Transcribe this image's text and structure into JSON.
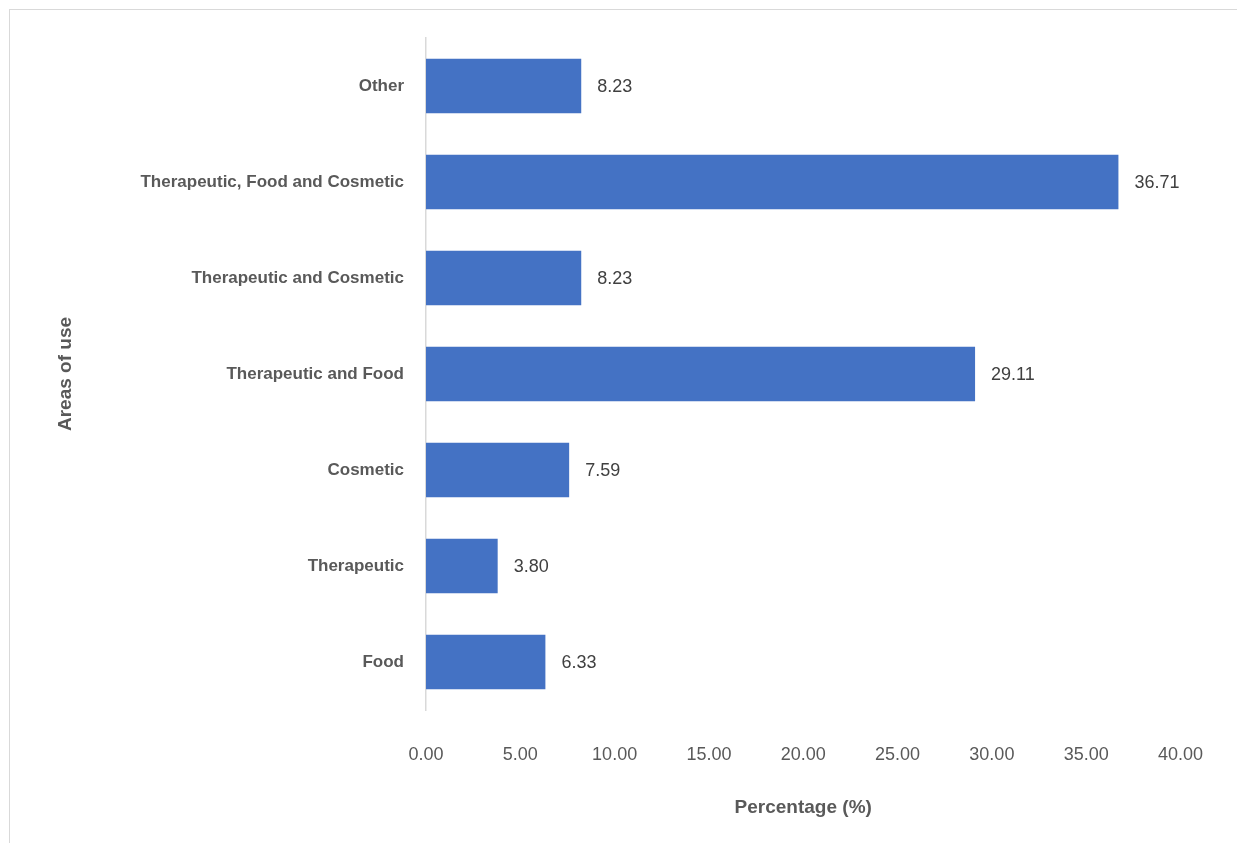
{
  "chart_data": {
    "type": "bar",
    "orientation": "horizontal",
    "xlabel": "Percentage (%)",
    "ylabel": "Areas of use",
    "categories": [
      "Other",
      "Therapeutic, Food and Cosmetic",
      "Therapeutic and Cosmetic",
      "Therapeutic and Food",
      "Cosmetic",
      "Therapeutic",
      "Food"
    ],
    "values": [
      8.23,
      36.71,
      8.23,
      29.11,
      7.59,
      3.8,
      6.33
    ],
    "value_labels": [
      "8.23",
      "36.71",
      "8.23",
      "29.11",
      "7.59",
      "3.80",
      "6.33"
    ],
    "color": "#4472c4",
    "xlim": [
      0,
      40
    ],
    "xticks": [
      {
        "value": 0,
        "label": "0.00"
      },
      {
        "value": 5,
        "label": "5.00"
      },
      {
        "value": 10,
        "label": "10.00"
      },
      {
        "value": 15,
        "label": "15.00"
      },
      {
        "value": 20,
        "label": "20.00"
      },
      {
        "value": 25,
        "label": "25.00"
      },
      {
        "value": 30,
        "label": "30.00"
      },
      {
        "value": 35,
        "label": "35.00"
      },
      {
        "value": 40,
        "label": "40.00"
      }
    ]
  }
}
